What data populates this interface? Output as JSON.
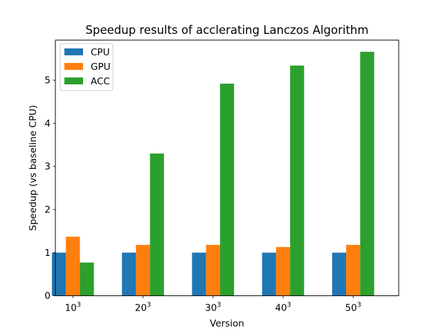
{
  "chart_data": {
    "type": "bar",
    "title": "Speedup results of acclerating Lanczos Algorithm",
    "xlabel": "Version",
    "ylabel": "Speedup (vs baseline CPU)",
    "categories": [
      {
        "base": "10",
        "sup": "3"
      },
      {
        "base": "20",
        "sup": "3"
      },
      {
        "base": "30",
        "sup": "3"
      },
      {
        "base": "40",
        "sup": "3"
      },
      {
        "base": "50",
        "sup": "3"
      }
    ],
    "series": [
      {
        "name": "CPU",
        "color": "#1f77b4",
        "values": [
          1.0,
          1.0,
          1.0,
          1.0,
          1.0
        ]
      },
      {
        "name": "GPU",
        "color": "#ff7f0e",
        "values": [
          1.37,
          1.18,
          1.18,
          1.13,
          1.18
        ]
      },
      {
        "name": "ACC",
        "color": "#2ca02c",
        "values": [
          0.77,
          3.3,
          4.92,
          5.34,
          5.66
        ]
      }
    ],
    "ylim": [
      0,
      5.93
    ],
    "yticks": [
      0,
      1,
      2,
      3,
      4,
      5
    ],
    "grid": false,
    "legend_position": "top-left"
  }
}
